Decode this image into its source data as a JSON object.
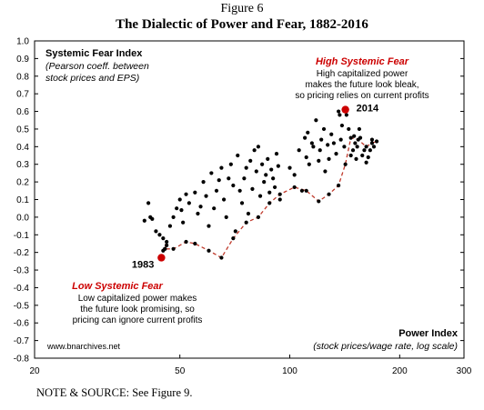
{
  "figure_label": "Figure 6",
  "figure_title": "The Dialectic of Power and Fear, 1882-2016",
  "note": "NOTE & SOURCE: See Figure 9.",
  "colors": {
    "accent": "#cc0000",
    "dots": "#000000",
    "path": "#c0392b"
  },
  "chart_data": {
    "type": "scatter",
    "x_scale": "log",
    "xlim": [
      20,
      300
    ],
    "ylim": [
      -0.8,
      1.0
    ],
    "x_ticks": [
      "20",
      "50",
      "100",
      "200",
      "300"
    ],
    "y_ticks": [
      "1.0",
      "0.9",
      "0.8",
      "0.7",
      "0.6",
      "0.5",
      "0.4",
      "0.3",
      "0.2",
      "0.1",
      "0.0",
      "-0.1",
      "-0.2",
      "-0.3",
      "-0.4",
      "-0.5",
      "-0.6",
      "-0.7",
      "-0.8"
    ],
    "ylabel": "Systemic Fear Index",
    "ylabel_note": "(Pearson coeff. between stock prices and EPS)",
    "xlabel": "Power Index",
    "xlabel_note": "(stock prices/wage rate, log scale)",
    "watermark": "www.bnarchives.net",
    "annotations": {
      "high": {
        "title": "High Systemic Fear",
        "lines": [
          "High capitalized power",
          "makes the future look bleak,",
          "so pricing relies on current profits"
        ]
      },
      "low": {
        "title": "Low Systemic Fear",
        "lines": [
          "Low capitalized power makes",
          "the future look promising, so",
          "pricing can ignore current profits"
        ]
      }
    },
    "highlighted_points": [
      {
        "label": "1983",
        "x": 44.5,
        "y": -0.23
      },
      {
        "label": "2014",
        "x": 142,
        "y": 0.61
      }
    ],
    "path_series": {
      "x": [
        44.5,
        45,
        46,
        45.5,
        48,
        52,
        55,
        60,
        65,
        70,
        76,
        82,
        88,
        94,
        103,
        111,
        120,
        128,
        136,
        142,
        147,
        154,
        162,
        168,
        173
      ],
      "y": [
        -0.23,
        -0.19,
        -0.14,
        -0.18,
        -0.18,
        -0.14,
        -0.15,
        -0.19,
        -0.23,
        -0.12,
        -0.03,
        0.0,
        0.08,
        0.13,
        0.17,
        0.15,
        0.09,
        0.13,
        0.18,
        0.3,
        0.45,
        0.44,
        0.4,
        0.42,
        0.43
      ]
    },
    "scatter_points": {
      "x": [
        40,
        41,
        41.5,
        42,
        43,
        44,
        45,
        45.5,
        46,
        47,
        48,
        49,
        50,
        50.5,
        51,
        52,
        53,
        55,
        56,
        57,
        58,
        59,
        60,
        61,
        62,
        63,
        64,
        65,
        66,
        67,
        68,
        69,
        70,
        71,
        72,
        73,
        74,
        75,
        76,
        77,
        78,
        79,
        80,
        81,
        82,
        83,
        84,
        85,
        86,
        87,
        88,
        89,
        90,
        91,
        92,
        93,
        94,
        100,
        103,
        106,
        108,
        110,
        111,
        112,
        113,
        115,
        116,
        118,
        120,
        121,
        122,
        124,
        125,
        127,
        128,
        130,
        132,
        134,
        136,
        137,
        138,
        139,
        141,
        143,
        145,
        147,
        149,
        150,
        151,
        152,
        153,
        155,
        156,
        158,
        160,
        162,
        164,
        166,
        168,
        170
      ],
      "y": [
        -0.02,
        0.08,
        0.0,
        -0.01,
        -0.08,
        -0.1,
        -0.12,
        -0.18,
        -0.16,
        -0.05,
        0.0,
        0.05,
        0.1,
        0.04,
        -0.03,
        0.13,
        0.08,
        0.14,
        0.02,
        0.06,
        0.2,
        0.12,
        -0.05,
        0.25,
        0.05,
        0.15,
        0.21,
        0.28,
        0.1,
        0.0,
        0.22,
        0.3,
        0.18,
        -0.08,
        0.35,
        0.15,
        0.08,
        0.22,
        0.28,
        0.02,
        0.32,
        0.16,
        0.38,
        0.26,
        0.4,
        0.12,
        0.3,
        0.2,
        0.24,
        0.33,
        0.14,
        0.27,
        0.22,
        0.17,
        0.36,
        0.29,
        0.1,
        0.28,
        0.24,
        0.38,
        0.15,
        0.45,
        0.34,
        0.48,
        0.3,
        0.42,
        0.4,
        0.55,
        0.32,
        0.38,
        0.44,
        0.5,
        0.26,
        0.41,
        0.33,
        0.47,
        0.42,
        0.36,
        0.6,
        0.58,
        0.44,
        0.52,
        0.4,
        0.58,
        0.5,
        0.35,
        0.38,
        0.46,
        0.42,
        0.33,
        0.4,
        0.5,
        0.45,
        0.35,
        0.38,
        0.31,
        0.34,
        0.38,
        0.44,
        0.4
      ]
    }
  }
}
